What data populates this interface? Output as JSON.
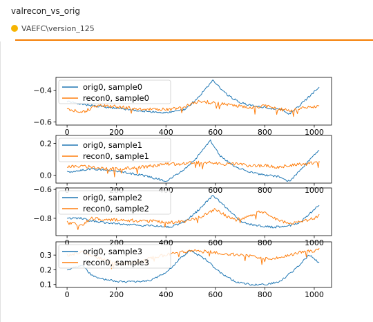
{
  "card": {
    "title": "valrecon_vs_orig",
    "run_label": "VAEFC\\version_125",
    "run_color": "#f6b401",
    "accent_color": "#f57c00"
  },
  "chart_data": [
    {
      "type": "line",
      "ylim": [
        -0.62,
        -0.32
      ],
      "yticks": [
        -0.6,
        -0.4
      ],
      "xlim": [
        -45,
        1070
      ],
      "xticks": [
        0,
        200,
        400,
        600,
        800,
        1000
      ],
      "legend": "upper-left",
      "series": [
        {
          "name": "orig0, sample0",
          "color": "#1f77b4",
          "x": [
            0,
            60,
            120,
            180,
            240,
            300,
            360,
            420,
            480,
            540,
            590,
            640,
            700,
            760,
            800,
            860,
            900,
            960,
            1020
          ],
          "y": [
            -0.47,
            -0.49,
            -0.5,
            -0.51,
            -0.52,
            -0.53,
            -0.54,
            -0.54,
            -0.52,
            -0.43,
            -0.34,
            -0.42,
            -0.48,
            -0.5,
            -0.51,
            -0.52,
            -0.55,
            -0.47,
            -0.38
          ]
        },
        {
          "name": "recon0, sample0",
          "color": "#ff7f0e",
          "x": [
            0,
            60,
            120,
            180,
            240,
            300,
            360,
            420,
            480,
            540,
            590,
            640,
            700,
            760,
            800,
            860,
            900,
            960,
            1020
          ],
          "y": [
            -0.52,
            -0.54,
            -0.5,
            -0.5,
            -0.51,
            -0.52,
            -0.52,
            -0.52,
            -0.5,
            -0.47,
            -0.48,
            -0.49,
            -0.5,
            -0.51,
            -0.5,
            -0.52,
            -0.53,
            -0.51,
            -0.5
          ]
        }
      ]
    },
    {
      "type": "line",
      "ylim": [
        -0.05,
        0.25
      ],
      "yticks": [
        0.0,
        0.2
      ],
      "xlim": [
        -45,
        1070
      ],
      "xticks": [
        0,
        200,
        400,
        600,
        800,
        1000
      ],
      "legend": "upper-left",
      "series": [
        {
          "name": "orig0, sample1",
          "color": "#1f77b4",
          "x": [
            0,
            60,
            100,
            160,
            220,
            300,
            360,
            400,
            460,
            520,
            580,
            620,
            680,
            740,
            800,
            860,
            900,
            960,
            1020
          ],
          "y": [
            0.02,
            0.03,
            0.04,
            0.03,
            0.02,
            0.0,
            -0.02,
            -0.04,
            0.02,
            0.1,
            0.22,
            0.12,
            0.05,
            0.02,
            0.0,
            -0.01,
            -0.04,
            0.06,
            0.16
          ]
        },
        {
          "name": "recon0, sample1",
          "color": "#ff7f0e",
          "x": [
            0,
            60,
            100,
            160,
            220,
            300,
            360,
            400,
            460,
            520,
            580,
            620,
            680,
            740,
            800,
            860,
            900,
            960,
            1020
          ],
          "y": [
            0.05,
            0.06,
            0.05,
            0.04,
            0.04,
            0.05,
            0.06,
            0.07,
            0.07,
            0.08,
            0.08,
            0.07,
            0.07,
            0.06,
            0.06,
            0.05,
            0.06,
            0.07,
            0.08
          ]
        }
      ]
    },
    {
      "type": "line",
      "ylim": [
        -0.92,
        -0.59
      ],
      "yticks": [
        -0.8,
        -0.6
      ],
      "xlim": [
        -45,
        1070
      ],
      "xticks": [
        0,
        200,
        400,
        600,
        800,
        1000
      ],
      "legend": "upper-left",
      "series": [
        {
          "name": "orig0, sample2",
          "color": "#1f77b4",
          "x": [
            0,
            60,
            100,
            160,
            220,
            300,
            360,
            420,
            480,
            540,
            590,
            640,
            700,
            760,
            820,
            880,
            940,
            1000,
            1020
          ],
          "y": [
            -0.8,
            -0.8,
            -0.82,
            -0.83,
            -0.84,
            -0.85,
            -0.85,
            -0.86,
            -0.82,
            -0.73,
            -0.64,
            -0.72,
            -0.82,
            -0.85,
            -0.86,
            -0.86,
            -0.83,
            -0.74,
            -0.71
          ]
        },
        {
          "name": "recon0, sample2",
          "color": "#ff7f0e",
          "x": [
            0,
            60,
            100,
            160,
            220,
            300,
            360,
            420,
            480,
            540,
            600,
            660,
            720,
            780,
            840,
            900,
            960,
            1000,
            1020
          ],
          "y": [
            -0.83,
            -0.85,
            -0.8,
            -0.81,
            -0.81,
            -0.82,
            -0.82,
            -0.83,
            -0.82,
            -0.79,
            -0.74,
            -0.8,
            -0.8,
            -0.75,
            -0.8,
            -0.84,
            -0.82,
            -0.8,
            -0.78
          ]
        }
      ]
    },
    {
      "type": "line",
      "ylim": [
        0.08,
        0.39
      ],
      "yticks": [
        0.1,
        0.2,
        0.3
      ],
      "xlim": [
        -45,
        1070
      ],
      "xticks": [
        0,
        200,
        400,
        600,
        800,
        1000
      ],
      "legend": "upper-left",
      "series": [
        {
          "name": "orig0, sample3",
          "color": "#1f77b4",
          "x": [
            0,
            60,
            100,
            160,
            220,
            280,
            340,
            400,
            460,
            500,
            560,
            620,
            680,
            740,
            800,
            860,
            920,
            980,
            1020
          ],
          "y": [
            0.2,
            0.23,
            0.16,
            0.13,
            0.12,
            0.12,
            0.13,
            0.18,
            0.28,
            0.33,
            0.27,
            0.18,
            0.12,
            0.1,
            0.1,
            0.12,
            0.2,
            0.3,
            0.25
          ]
        },
        {
          "name": "recon0, sample3",
          "color": "#ff7f0e",
          "x": [
            0,
            60,
            100,
            160,
            220,
            280,
            340,
            400,
            460,
            520,
            580,
            640,
            700,
            760,
            820,
            880,
            940,
            1000,
            1020
          ],
          "y": [
            0.3,
            0.32,
            0.3,
            0.26,
            0.24,
            0.25,
            0.28,
            0.3,
            0.32,
            0.33,
            0.32,
            0.31,
            0.3,
            0.29,
            0.27,
            0.29,
            0.32,
            0.33,
            0.34
          ]
        }
      ]
    }
  ]
}
